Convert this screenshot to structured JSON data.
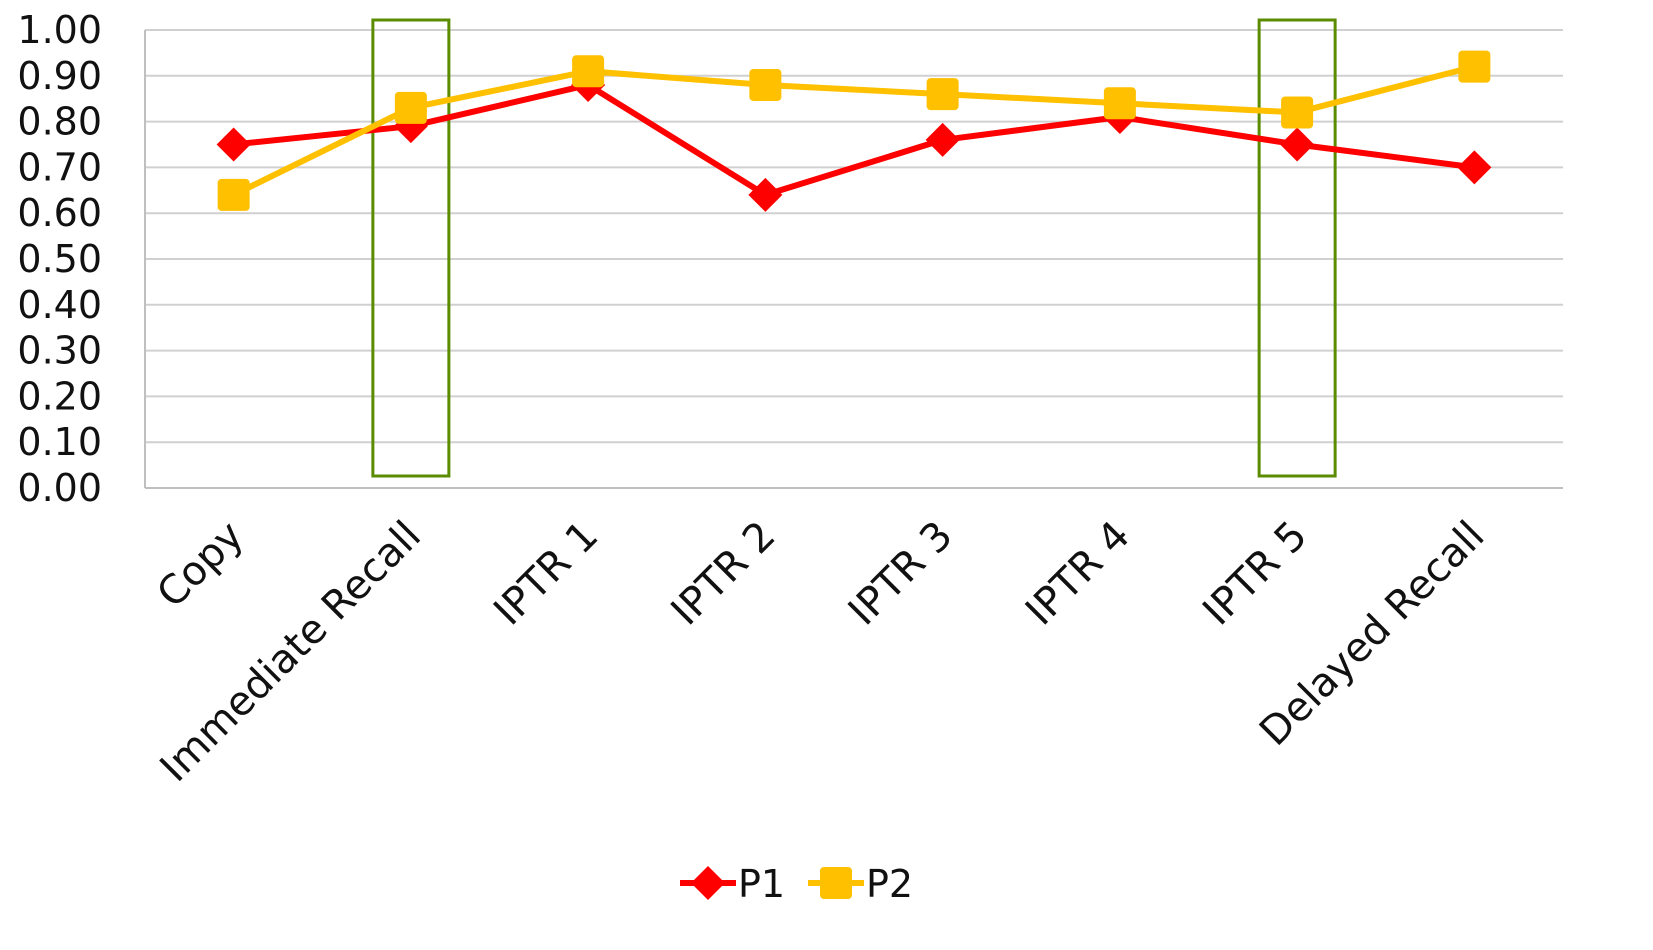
{
  "chart_data": {
    "type": "line",
    "title": "",
    "xlabel": "",
    "ylabel": "",
    "categories": [
      "Copy",
      "Immediate Recall",
      "IPTR 1",
      "IPTR 2",
      "IPTR 3",
      "IPTR 4",
      "IPTR 5",
      "Delayed Recall"
    ],
    "ylim": [
      0,
      1.0
    ],
    "yticks": [
      "0.00",
      "0.10",
      "0.20",
      "0.30",
      "0.40",
      "0.50",
      "0.60",
      "0.70",
      "0.80",
      "0.90",
      "1.00"
    ],
    "grid": true,
    "legend_position": "bottom",
    "series": [
      {
        "name": "P1",
        "color": "#ff0000",
        "marker": "diamond",
        "values": [
          0.75,
          0.79,
          0.88,
          0.64,
          0.76,
          0.81,
          0.75,
          0.7
        ]
      },
      {
        "name": "P2",
        "color": "#ffc000",
        "marker": "square",
        "values": [
          0.64,
          0.83,
          0.91,
          0.88,
          0.86,
          0.84,
          0.82,
          0.92
        ]
      }
    ],
    "highlights": [
      {
        "category": "Immediate Recall",
        "color": "#5b8c00"
      },
      {
        "category": "IPTR 5",
        "color": "#5b8c00"
      }
    ]
  }
}
